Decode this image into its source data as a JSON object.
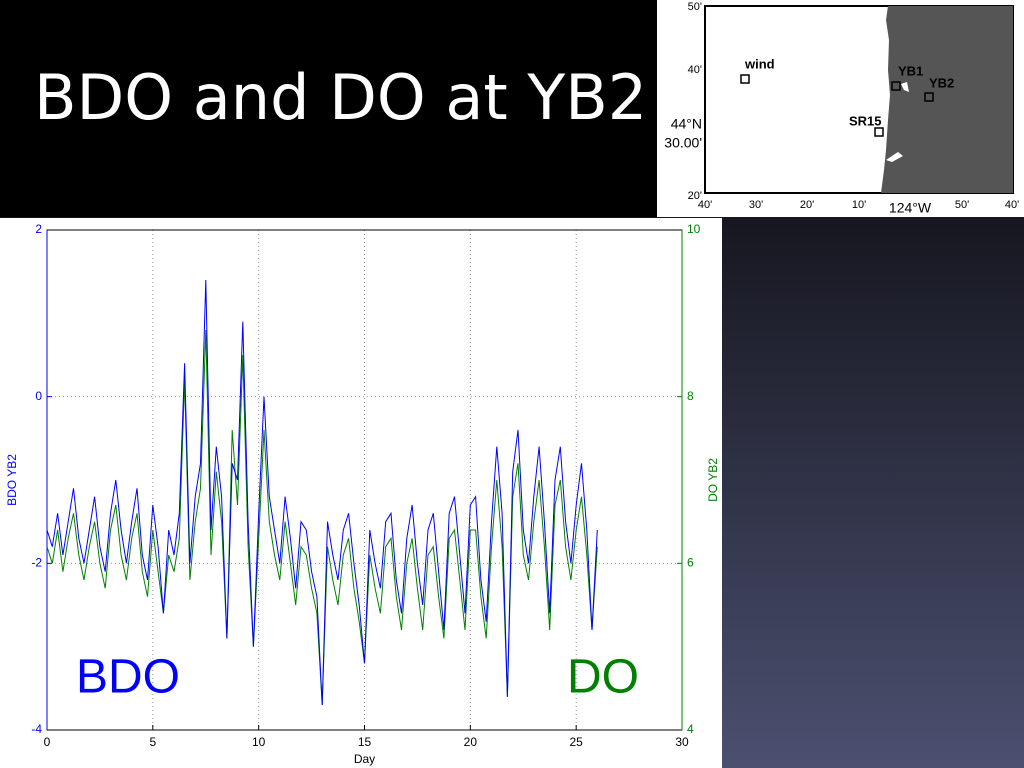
{
  "title": "BDO and DO at YB2",
  "map": {
    "left_labels": [
      "50'",
      "40'",
      "44°N",
      "30.00'",
      "20'"
    ],
    "bottom_labels": [
      "40'",
      "30'",
      "20'",
      "10'",
      "124°W",
      "50'",
      "40'"
    ],
    "stations": [
      "wind",
      "YB1",
      "YB2",
      "SR15"
    ]
  },
  "chart_data": {
    "type": "line",
    "x": [
      0,
      0.25,
      0.5,
      0.75,
      1,
      1.25,
      1.5,
      1.75,
      2,
      2.25,
      2.5,
      2.75,
      3,
      3.25,
      3.5,
      3.75,
      4,
      4.25,
      4.5,
      4.75,
      5,
      5.25,
      5.5,
      5.75,
      6,
      6.25,
      6.5,
      6.75,
      7,
      7.25,
      7.5,
      7.75,
      8,
      8.25,
      8.5,
      8.75,
      9,
      9.25,
      9.5,
      9.75,
      10,
      10.25,
      10.5,
      10.75,
      11,
      11.25,
      11.5,
      11.75,
      12,
      12.25,
      12.5,
      12.75,
      13,
      13.25,
      13.5,
      13.75,
      14,
      14.25,
      14.5,
      14.75,
      15,
      15.25,
      15.5,
      15.75,
      16,
      16.25,
      16.5,
      16.75,
      17,
      17.25,
      17.5,
      17.75,
      18,
      18.25,
      18.5,
      18.75,
      19,
      19.25,
      19.5,
      19.75,
      20,
      20.25,
      20.5,
      20.75,
      21,
      21.25,
      21.5,
      21.75,
      22,
      22.25,
      22.5,
      22.75,
      23,
      23.25,
      23.5,
      23.75,
      24,
      24.25,
      24.5,
      24.75,
      25,
      25.25,
      25.5,
      25.75,
      26
    ],
    "series": [
      {
        "name": "BDO",
        "color": "#0000ff",
        "values": [
          -1.6,
          -1.8,
          -1.4,
          -1.9,
          -1.5,
          -1.1,
          -1.7,
          -2.0,
          -1.6,
          -1.2,
          -1.8,
          -2.1,
          -1.4,
          -1.0,
          -1.6,
          -2.0,
          -1.5,
          -1.1,
          -1.9,
          -2.2,
          -1.3,
          -1.8,
          -2.6,
          -1.6,
          -1.9,
          -1.4,
          0.4,
          -2.0,
          -1.2,
          -0.8,
          1.4,
          -1.6,
          -0.6,
          -1.2,
          -2.9,
          -0.8,
          -1.0,
          0.9,
          -1.5,
          -3.0,
          -1.4,
          0.0,
          -1.2,
          -1.6,
          -2.0,
          -1.2,
          -1.7,
          -2.3,
          -1.5,
          -1.6,
          -2.1,
          -2.4,
          -3.7,
          -1.5,
          -1.9,
          -2.2,
          -1.6,
          -1.4,
          -2.0,
          -2.5,
          -3.2,
          -1.6,
          -2.0,
          -2.3,
          -1.5,
          -1.4,
          -2.2,
          -2.6,
          -1.7,
          -1.3,
          -2.0,
          -2.5,
          -1.6,
          -1.4,
          -2.1,
          -2.8,
          -1.4,
          -1.2,
          -1.9,
          -2.6,
          -1.3,
          -1.2,
          -2.2,
          -2.7,
          -1.5,
          -0.6,
          -1.4,
          -3.6,
          -0.9,
          -0.4,
          -1.6,
          -2.0,
          -1.2,
          -0.6,
          -1.5,
          -2.6,
          -1.0,
          -0.6,
          -1.5,
          -2.0,
          -1.3,
          -0.8,
          -1.6,
          -2.8,
          -1.6
        ]
      },
      {
        "name": "DO",
        "color": "#008000",
        "axis": "y2",
        "values": [
          6.2,
          6.0,
          6.4,
          5.9,
          6.3,
          6.6,
          6.1,
          5.8,
          6.2,
          6.5,
          6.0,
          5.7,
          6.4,
          6.7,
          6.1,
          5.8,
          6.3,
          6.6,
          5.9,
          5.6,
          6.4,
          5.9,
          5.4,
          6.1,
          5.9,
          6.3,
          8.2,
          5.8,
          6.5,
          6.9,
          8.8,
          6.1,
          7.1,
          6.5,
          5.1,
          7.6,
          6.7,
          8.5,
          6.2,
          5.0,
          6.3,
          7.6,
          6.5,
          6.1,
          5.8,
          6.5,
          6.0,
          5.5,
          6.2,
          6.1,
          5.7,
          5.4,
          4.3,
          6.2,
          5.8,
          5.5,
          6.1,
          6.3,
          5.7,
          5.3,
          4.8,
          6.1,
          5.7,
          5.4,
          6.2,
          6.3,
          5.6,
          5.2,
          6.0,
          6.3,
          5.7,
          5.2,
          6.1,
          6.2,
          5.6,
          5.1,
          6.3,
          6.4,
          5.8,
          5.2,
          6.4,
          6.4,
          5.6,
          5.1,
          6.2,
          7.0,
          6.2,
          4.4,
          6.8,
          7.2,
          6.1,
          5.8,
          6.5,
          7.0,
          6.2,
          5.2,
          6.7,
          7.0,
          6.2,
          5.8,
          6.4,
          6.8,
          6.1,
          5.2,
          6.2
        ]
      }
    ],
    "xlim": [
      0,
      30
    ],
    "xticks": [
      0,
      5,
      10,
      15,
      20,
      25,
      30
    ],
    "ylim": [
      -4,
      2
    ],
    "yticks": [
      -4,
      -2,
      0,
      2
    ],
    "y2lim": [
      4,
      10
    ],
    "y2ticks": [
      4,
      6,
      8,
      10
    ],
    "xlabel": "Day",
    "ylabel": "BDO YB2",
    "y2label": "DO YB2",
    "grid": true
  }
}
